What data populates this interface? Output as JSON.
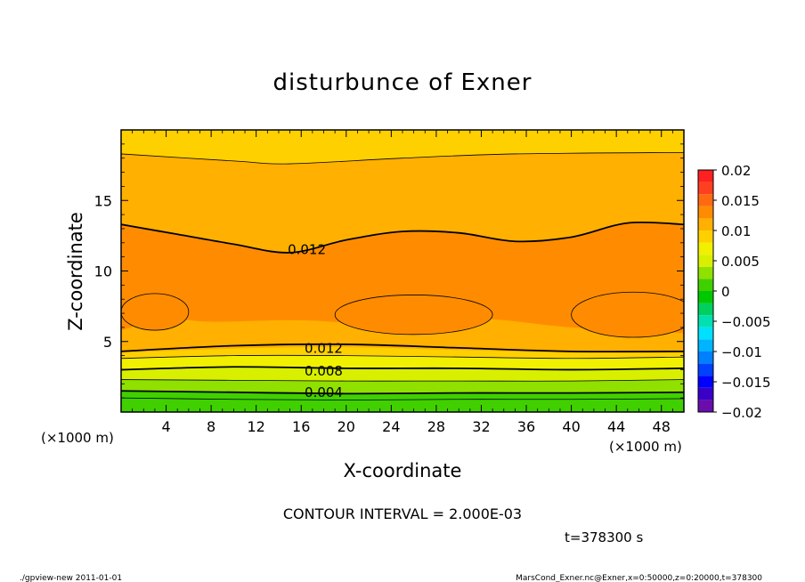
{
  "chart_data": {
    "type": "heatmap",
    "title": "disturbunce of Exner",
    "xlabel": "X-coordinate",
    "ylabel": "Z-coordinate",
    "x_unit": "(×1000 m)",
    "y_unit": "(×1000 m)",
    "xlim": [
      0,
      50
    ],
    "ylim": [
      0,
      20
    ],
    "x_ticks": [
      "4",
      "8",
      "12",
      "16",
      "20",
      "24",
      "28",
      "32",
      "36",
      "40",
      "44",
      "48"
    ],
    "y_ticks": [
      "5",
      "10",
      "15"
    ],
    "colorbar": {
      "levels": [
        -0.02,
        -0.018,
        -0.016,
        -0.014,
        -0.012,
        -0.01,
        -0.008,
        -0.006,
        -0.004,
        -0.002,
        0,
        0.002,
        0.004,
        0.006,
        0.008,
        0.01,
        0.012,
        0.014,
        0.016,
        0.018,
        0.02
      ],
      "tick_labels": [
        "0.02",
        "0.015",
        "0.01",
        "0.005",
        "0",
        "−0.005",
        "−0.01",
        "−0.015",
        "−0.02"
      ],
      "colors": [
        "#6a0dad",
        "#3a00c8",
        "#0000ff",
        "#0040ff",
        "#0080ff",
        "#00b4ff",
        "#00e0ff",
        "#00e0b0",
        "#00d060",
        "#00c800",
        "#40d000",
        "#90e000",
        "#d8f000",
        "#f0f000",
        "#ffd000",
        "#ffb000",
        "#ff8c00",
        "#ff6a10",
        "#ff4020",
        "#ff2020",
        "#ff9090"
      ]
    },
    "contour_interval": "CONTOUR INTERVAL = 2.000E-03",
    "contour_labels": [
      {
        "text": "0.012",
        "x": 16.5,
        "y": 11.5
      },
      {
        "text": "0.012",
        "x": 18.0,
        "y": 4.5
      },
      {
        "text": "0.008",
        "x": 18.0,
        "y": 2.9
      },
      {
        "text": "0.004",
        "x": 18.0,
        "y": 1.4
      }
    ],
    "layers": [
      {
        "value": 0.0005,
        "top": [
          [
            0,
            1.0
          ],
          [
            10,
            0.9
          ],
          [
            20,
            0.85
          ],
          [
            30,
            0.9
          ],
          [
            40,
            0.9
          ],
          [
            50,
            0.95
          ]
        ]
      },
      {
        "value": 0.001,
        "top": [
          [
            0,
            1.5
          ],
          [
            10,
            1.4
          ],
          [
            20,
            1.3
          ],
          [
            30,
            1.35
          ],
          [
            40,
            1.35
          ],
          [
            50,
            1.4
          ]
        ]
      },
      {
        "value": 0.002,
        "top": [
          [
            0,
            1.9
          ],
          [
            10,
            1.8
          ],
          [
            20,
            1.7
          ],
          [
            30,
            1.75
          ],
          [
            40,
            1.75
          ],
          [
            50,
            1.8
          ]
        ]
      },
      {
        "value": 0.003,
        "top": [
          [
            0,
            2.3
          ],
          [
            10,
            2.25
          ],
          [
            20,
            2.2
          ],
          [
            30,
            2.2
          ],
          [
            40,
            2.2
          ],
          [
            50,
            2.3
          ]
        ]
      },
      {
        "value": 0.004,
        "top": [
          [
            0,
            2.7
          ],
          [
            10,
            2.75
          ],
          [
            20,
            2.7
          ],
          [
            30,
            2.7
          ],
          [
            40,
            2.7
          ],
          [
            50,
            2.8
          ]
        ]
      },
      {
        "value": 0.005,
        "top": [
          [
            0,
            3.0
          ],
          [
            10,
            3.2
          ],
          [
            20,
            3.1
          ],
          [
            30,
            3.1
          ],
          [
            40,
            3.0
          ],
          [
            50,
            3.1
          ]
        ]
      },
      {
        "value": 0.006,
        "top": [
          [
            0,
            3.4
          ],
          [
            10,
            3.6
          ],
          [
            20,
            3.55
          ],
          [
            30,
            3.5
          ],
          [
            40,
            3.4
          ],
          [
            50,
            3.5
          ]
        ]
      },
      {
        "value": 0.007,
        "top": [
          [
            0,
            3.8
          ],
          [
            10,
            4.0
          ],
          [
            20,
            4.0
          ],
          [
            30,
            3.9
          ],
          [
            40,
            3.8
          ],
          [
            50,
            3.9
          ]
        ]
      },
      {
        "value": 0.009,
        "top": [
          [
            0,
            4.2
          ],
          [
            10,
            4.5
          ],
          [
            20,
            4.6
          ],
          [
            30,
            4.4
          ],
          [
            40,
            4.2
          ],
          [
            50,
            4.2
          ]
        ]
      },
      {
        "value": 0.011,
        "top": [
          [
            0,
            5.8
          ],
          [
            4,
            6.6
          ],
          [
            8,
            6.4
          ],
          [
            16,
            6.5
          ],
          [
            24,
            6.2
          ],
          [
            32,
            6.6
          ],
          [
            40,
            6.0
          ],
          [
            50,
            5.6
          ]
        ]
      },
      {
        "value": 0.012,
        "top": [
          [
            0,
            13.3
          ],
          [
            5,
            12.6
          ],
          [
            10,
            11.9
          ],
          [
            15,
            11.3
          ],
          [
            20,
            12.2
          ],
          [
            25,
            12.8
          ],
          [
            30,
            12.7
          ],
          [
            35,
            12.1
          ],
          [
            40,
            12.4
          ],
          [
            45,
            13.4
          ],
          [
            50,
            13.3
          ]
        ]
      },
      {
        "value": 0.011,
        "top": [
          [
            0,
            16.2
          ],
          [
            10,
            15.8
          ],
          [
            20,
            15.6
          ],
          [
            30,
            15.7
          ],
          [
            40,
            15.9
          ],
          [
            50,
            16.2
          ]
        ]
      },
      {
        "value": 0.01,
        "top": [
          [
            0,
            18.3
          ],
          [
            10,
            17.8
          ],
          [
            15,
            17.6
          ],
          [
            25,
            18.0
          ],
          [
            35,
            18.3
          ],
          [
            50,
            18.4
          ]
        ]
      },
      {
        "value": 0.009,
        "top": [
          [
            0,
            20
          ],
          [
            50,
            20
          ]
        ]
      }
    ],
    "cores": [
      {
        "value": 0.013,
        "cx": 3.0,
        "cy": 7.1,
        "rx": 3.0,
        "ry": 1.3
      },
      {
        "value": 0.013,
        "cx": 26.0,
        "cy": 6.9,
        "rx": 7.0,
        "ry": 1.4
      },
      {
        "value": 0.013,
        "cx": 45.5,
        "cy": 6.9,
        "rx": 5.5,
        "ry": 1.6
      }
    ],
    "contour_lines": [
      {
        "value": 0.012,
        "width": 1.8,
        "points": [
          [
            0,
            13.3
          ],
          [
            5,
            12.6
          ],
          [
            10,
            11.9
          ],
          [
            15,
            11.3
          ],
          [
            20,
            12.2
          ],
          [
            25,
            12.8
          ],
          [
            30,
            12.7
          ],
          [
            35,
            12.1
          ],
          [
            40,
            12.4
          ],
          [
            45,
            13.4
          ],
          [
            50,
            13.3
          ]
        ]
      },
      {
        "value": 0.012,
        "width": 1.8,
        "points": [
          [
            0,
            4.3
          ],
          [
            10,
            4.7
          ],
          [
            20,
            4.8
          ],
          [
            30,
            4.55
          ],
          [
            40,
            4.3
          ],
          [
            50,
            4.3
          ]
        ]
      },
      {
        "value": 0.008,
        "width": 1.8,
        "points": [
          [
            0,
            3.0
          ],
          [
            10,
            3.2
          ],
          [
            20,
            3.1
          ],
          [
            30,
            3.1
          ],
          [
            40,
            3.0
          ],
          [
            50,
            3.1
          ]
        ]
      },
      {
        "value": 0.004,
        "width": 1.8,
        "points": [
          [
            0,
            1.5
          ],
          [
            10,
            1.4
          ],
          [
            20,
            1.3
          ],
          [
            30,
            1.35
          ],
          [
            40,
            1.35
          ],
          [
            50,
            1.4
          ]
        ]
      },
      {
        "value": 0.01,
        "width": 0.8,
        "points": [
          [
            0,
            18.3
          ],
          [
            10,
            17.8
          ],
          [
            15,
            17.6
          ],
          [
            25,
            18.0
          ],
          [
            35,
            18.3
          ],
          [
            50,
            18.4
          ]
        ]
      },
      {
        "value": 0.01,
        "width": 0.8,
        "points": [
          [
            0,
            3.8
          ],
          [
            10,
            4.0
          ],
          [
            20,
            4.0
          ],
          [
            30,
            3.9
          ],
          [
            40,
            3.8
          ],
          [
            50,
            3.9
          ]
        ]
      },
      {
        "value": 0.006,
        "width": 0.8,
        "points": [
          [
            0,
            2.3
          ],
          [
            10,
            2.25
          ],
          [
            20,
            2.2
          ],
          [
            30,
            2.2
          ],
          [
            40,
            2.2
          ],
          [
            50,
            2.3
          ]
        ]
      },
      {
        "value": 0.002,
        "width": 0.8,
        "points": [
          [
            0,
            1.0
          ],
          [
            10,
            0.9
          ],
          [
            20,
            0.85
          ],
          [
            30,
            0.9
          ],
          [
            40,
            0.9
          ],
          [
            50,
            0.95
          ]
        ]
      }
    ]
  },
  "annotations": {
    "time": "t=378300 s",
    "footer_left": "./gpview-new   2011-01-01",
    "footer_right": "MarsCond_Exner.nc@Exner,x=0:50000,z=0:20000,t=378300"
  }
}
